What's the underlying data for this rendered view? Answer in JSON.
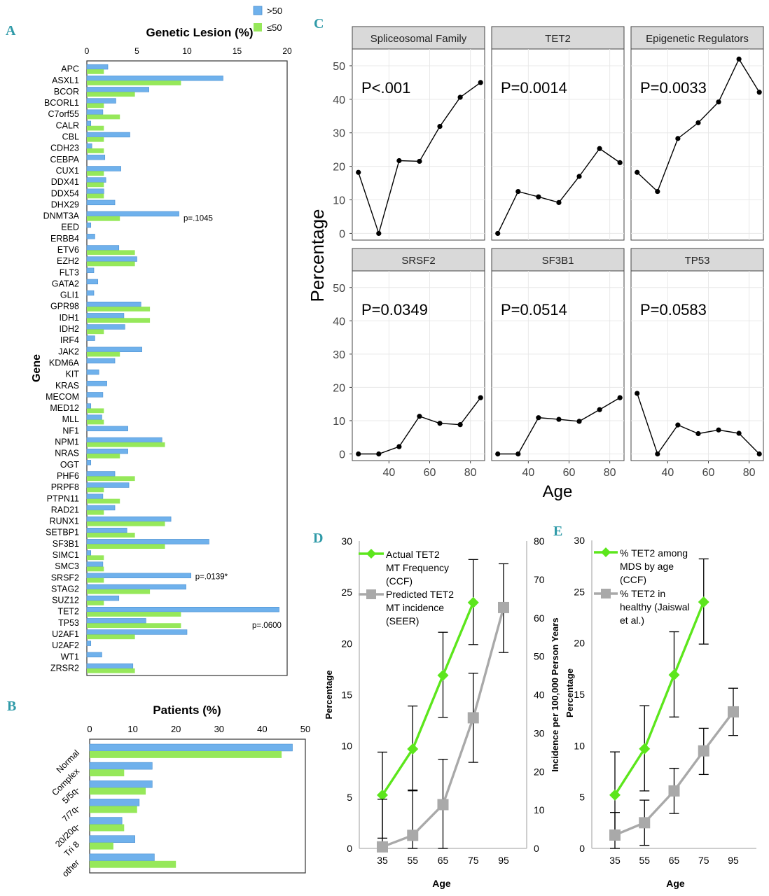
{
  "colors": {
    "blue": "#6fb1ec",
    "green": "#96e85a",
    "line_green": "#5ce61c",
    "line_gray": "#a9a9a9",
    "strip": "#d9d9d9",
    "panel_letter": "#2f9aa8"
  },
  "panel_letters": {
    "a": "A",
    "b": "B",
    "c": "C",
    "d": "D",
    "e": "E"
  },
  "legend_top": {
    "blue": ">50",
    "green": "≤50"
  },
  "chart_data": [
    {
      "id": "A",
      "type": "bar",
      "orientation": "horizontal",
      "title": "Genetic Lesion (%)",
      "ylabel": "Gene",
      "xlim": [
        0,
        20
      ],
      "xticks": [
        0,
        5,
        10,
        15,
        20
      ],
      "categories": [
        "APC",
        "ASXL1",
        "BCOR",
        "BCORL1",
        "C7orf55",
        "CALR",
        "CBL",
        "CDH23",
        "CEBPA",
        "CUX1",
        "DDX41",
        "DDX54",
        "DHX29",
        "DNMT3A",
        "EED",
        "ERBB4",
        "ETV6",
        "EZH2",
        "FLT3",
        "GATA2",
        "GLI1",
        "GPR98",
        "IDH1",
        "IDH2",
        "IRF4",
        "JAK2",
        "KDM6A",
        "KIT",
        "KRAS",
        "MECOM",
        "MED12",
        "MLL",
        "NF1",
        "NPM1",
        "NRAS",
        "OGT",
        "PHF6",
        "PRPF8",
        "PTPN11",
        "RAD21",
        "RUNX1",
        "SETBP1",
        "SF3B1",
        "SIMC1",
        "SMC3",
        "SRSF2",
        "STAG2",
        "SUZ12",
        "TET2",
        "TP53",
        "U2AF1",
        "U2AF2",
        "WT1",
        "ZRSR2"
      ],
      "series": [
        {
          "name": ">50",
          "values": [
            2.1,
            13.6,
            6.2,
            2.9,
            1.6,
            0.4,
            4.3,
            0.5,
            1.8,
            3.4,
            1.9,
            1.7,
            2.8,
            9.2,
            0.4,
            0.8,
            3.2,
            5.0,
            0.7,
            1.1,
            0.7,
            5.4,
            3.7,
            3.8,
            0.8,
            5.5,
            2.8,
            1.2,
            2.0,
            1.6,
            0.4,
            1.5,
            4.1,
            7.5,
            4.1,
            0.4,
            2.8,
            4.2,
            1.6,
            2.8,
            8.4,
            4.0,
            12.2,
            0.4,
            1.6,
            10.4,
            9.9,
            3.2,
            19.2,
            5.9,
            10.0,
            0.4,
            1.5,
            4.6
          ]
        },
        {
          "name": "≤50",
          "values": [
            1.7,
            9.4,
            4.8,
            1.7,
            3.3,
            1.7,
            1.7,
            1.7,
            0,
            1.7,
            1.7,
            1.7,
            0,
            3.3,
            0,
            0,
            4.8,
            4.8,
            0,
            0,
            0,
            6.3,
            6.3,
            1.7,
            0,
            3.3,
            0,
            0,
            0,
            0,
            1.7,
            1.7,
            0,
            7.8,
            3.3,
            0,
            4.8,
            1.7,
            3.3,
            1.7,
            7.8,
            4.8,
            7.8,
            1.7,
            1.7,
            1.7,
            6.3,
            1.7,
            9.4,
            9.4,
            4.8,
            0,
            0,
            4.8
          ]
        }
      ],
      "annotations": [
        {
          "gene": "DNMT3A",
          "text": "p=.1045"
        },
        {
          "gene": "SRSF2",
          "text": "p=.0139*"
        },
        {
          "gene": "TET2",
          "text": "p=.0600"
        }
      ]
    },
    {
      "id": "B",
      "type": "bar",
      "orientation": "horizontal",
      "title": "Patients (%)",
      "xlim": [
        0,
        50
      ],
      "xticks": [
        0,
        10,
        20,
        30,
        40,
        50
      ],
      "categories": [
        "Normal",
        "Complex",
        "5/5q-",
        "7/7q-",
        "20/20q-",
        "Tri 8",
        "other"
      ],
      "series": [
        {
          "name": ">50",
          "values": [
            47,
            14.5,
            14.5,
            11.5,
            7.5,
            10.5,
            15
          ]
        },
        {
          "name": "≤50",
          "values": [
            44.5,
            8,
            13,
            11,
            8,
            5.5,
            20
          ]
        }
      ]
    },
    {
      "id": "C",
      "type": "line",
      "facet": true,
      "xlabel": "Age",
      "ylabel": "Percentage",
      "ylim": [
        -2,
        55
      ],
      "yticks": [
        0,
        10,
        20,
        30,
        40,
        50
      ],
      "xlim": [
        22,
        87
      ],
      "xticks": [
        40,
        60,
        80
      ],
      "facets": [
        {
          "title": "Spliceosomal Family",
          "p": "P<.001",
          "x": [
            25,
            35,
            45,
            55,
            65,
            75,
            85
          ],
          "y": [
            18.2,
            0,
            21.7,
            21.5,
            31.9,
            40.6,
            45
          ]
        },
        {
          "title": "TET2",
          "p": "P=0.0014",
          "x": [
            25,
            35,
            45,
            55,
            65,
            75,
            85
          ],
          "y": [
            0,
            12.5,
            10.9,
            9.2,
            17,
            25.3,
            21.1
          ]
        },
        {
          "title": "Epigenetic Regulators",
          "p": "P=0.0033",
          "x": [
            25,
            35,
            45,
            55,
            65,
            75,
            85
          ],
          "y": [
            18.2,
            12.5,
            28.3,
            33,
            39.2,
            52,
            42.1
          ]
        },
        {
          "title": "SRSF2",
          "p": "P=0.0349",
          "x": [
            25,
            35,
            45,
            55,
            65,
            75,
            85
          ],
          "y": [
            0,
            0,
            2.2,
            11.3,
            9.2,
            8.8,
            16.9
          ]
        },
        {
          "title": "SF3B1",
          "p": "P=0.0514",
          "x": [
            25,
            35,
            45,
            55,
            65,
            75,
            85
          ],
          "y": [
            0,
            0,
            10.9,
            10.4,
            9.8,
            13.3,
            16.9
          ]
        },
        {
          "title": "TP53",
          "p": "P=0.0583",
          "x": [
            25,
            35,
            45,
            55,
            65,
            75,
            85
          ],
          "y": [
            18.2,
            0,
            8.7,
            6.1,
            7.2,
            6.2,
            0
          ]
        }
      ]
    },
    {
      "id": "D",
      "type": "line",
      "xlabel": "Age",
      "ylabel": "Percentage",
      "y2label": "Incidence per 100,000 Person Years",
      "x_categories": [
        "35",
        "55",
        "65",
        "75",
        "95"
      ],
      "ylim": [
        0,
        30
      ],
      "yticks": [
        0,
        5,
        10,
        15,
        20,
        25,
        30
      ],
      "y2lim": [
        0,
        80
      ],
      "y2ticks": [
        0,
        10,
        20,
        30,
        40,
        50,
        60,
        70,
        80
      ],
      "legend": [
        "Actual TET2 MT Frequency (CCF)",
        "Predicted TET2 MT incidence (SEER)"
      ],
      "series": [
        {
          "name": "Actual TET2 MT Frequency (CCF)",
          "axis": "left",
          "x_index": [
            0,
            1,
            2,
            3
          ],
          "values": [
            5.2,
            9.7,
            16.9,
            24
          ],
          "err_low": [
            1,
            5.7,
            12.8,
            19.9
          ],
          "err_high": [
            9.4,
            13.9,
            21.1,
            28.2
          ]
        },
        {
          "name": "Predicted TET2 MT incidence (SEER)",
          "axis": "right",
          "x_index": [
            0,
            1,
            2,
            3,
            4
          ],
          "values": [
            0.4,
            3.4,
            11.4,
            34,
            62.7
          ],
          "err_low": [
            0,
            0,
            0,
            22.4,
            51
          ],
          "err_high": [
            12.8,
            15,
            23.2,
            45.6,
            74.1
          ]
        }
      ]
    },
    {
      "id": "E",
      "type": "line",
      "xlabel": "Age",
      "ylabel": "Percentage",
      "x_categories": [
        "35",
        "55",
        "65",
        "75",
        "95"
      ],
      "ylim": [
        0,
        30
      ],
      "yticks": [
        0,
        5,
        10,
        15,
        20,
        25,
        30
      ],
      "legend": [
        "% TET2 among MDS by age (CCF)",
        "% TET2 in healthy (Jaiswal et al.)"
      ],
      "series": [
        {
          "name": "% TET2 among MDS by age (CCF)",
          "x_index": [
            0,
            1,
            2,
            3
          ],
          "values": [
            5.2,
            9.7,
            16.9,
            24
          ],
          "err_low": [
            1,
            5.6,
            12.8,
            19.9
          ],
          "err_high": [
            9.4,
            13.9,
            21.1,
            28.2
          ]
        },
        {
          "name": "% TET2 in healthy (Jaiswal et al.)",
          "x_index": [
            0,
            1,
            2,
            3,
            4
          ],
          "values": [
            1.3,
            2.5,
            5.6,
            9.5,
            13.3
          ],
          "err_low": [
            0,
            0.3,
            3.4,
            7.2,
            11
          ],
          "err_high": [
            3.5,
            4.7,
            7.8,
            11.7,
            15.6
          ]
        }
      ]
    }
  ]
}
